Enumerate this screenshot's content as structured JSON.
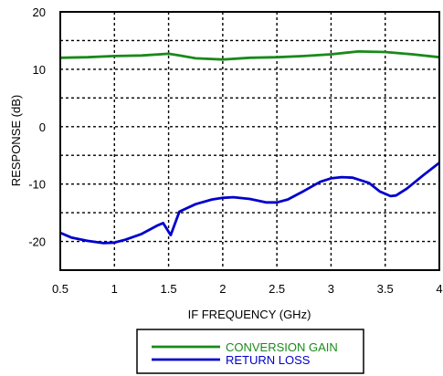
{
  "chart_data": {
    "type": "line",
    "xlabel": "IF FREQUENCY (GHz)",
    "ylabel": "RESPONSE (dB)",
    "xlim": [
      0.5,
      4
    ],
    "ylim": [
      -25,
      20
    ],
    "xticks": [
      0.5,
      1,
      1.5,
      2,
      2.5,
      3,
      3.5,
      4
    ],
    "xtick_labels": [
      "0.5",
      "1",
      "1.5",
      "2",
      "2.5",
      "3",
      "3.5",
      "4"
    ],
    "yticks": [
      20,
      10,
      0,
      -10,
      -20
    ],
    "ytick_labels": [
      "20",
      "10",
      "0",
      "-10",
      "-20"
    ],
    "x_grid_lines": [
      1,
      1.5,
      2,
      2.5,
      3,
      3.5
    ],
    "y_grid_lines": [
      15,
      10,
      5,
      0,
      -5,
      -10,
      -15,
      -20
    ],
    "grid": "dotted",
    "legend_position": "below",
    "series": [
      {
        "name": "CONVERSION GAIN",
        "color": "#1a8a1a",
        "points": [
          [
            0.5,
            12.0
          ],
          [
            0.75,
            12.1
          ],
          [
            1.0,
            12.3
          ],
          [
            1.25,
            12.4
          ],
          [
            1.5,
            12.7
          ],
          [
            1.6,
            12.4
          ],
          [
            1.75,
            11.9
          ],
          [
            2.0,
            11.7
          ],
          [
            2.25,
            12.0
          ],
          [
            2.5,
            12.1
          ],
          [
            2.75,
            12.3
          ],
          [
            3.0,
            12.6
          ],
          [
            3.25,
            13.1
          ],
          [
            3.5,
            13.0
          ],
          [
            3.75,
            12.6
          ],
          [
            4.0,
            12.1
          ]
        ]
      },
      {
        "name": "RETURN LOSS",
        "color": "#0000cc",
        "points": [
          [
            0.5,
            -18.5
          ],
          [
            0.6,
            -19.3
          ],
          [
            0.75,
            -19.9
          ],
          [
            0.9,
            -20.3
          ],
          [
            1.0,
            -20.2
          ],
          [
            1.1,
            -19.7
          ],
          [
            1.25,
            -18.7
          ],
          [
            1.4,
            -17.2
          ],
          [
            1.45,
            -16.8
          ],
          [
            1.52,
            -18.9
          ],
          [
            1.6,
            -14.8
          ],
          [
            1.75,
            -13.5
          ],
          [
            1.9,
            -12.7
          ],
          [
            2.0,
            -12.4
          ],
          [
            2.1,
            -12.3
          ],
          [
            2.25,
            -12.6
          ],
          [
            2.4,
            -13.2
          ],
          [
            2.5,
            -13.2
          ],
          [
            2.6,
            -12.7
          ],
          [
            2.75,
            -11.2
          ],
          [
            2.9,
            -9.6
          ],
          [
            3.0,
            -9.0
          ],
          [
            3.1,
            -8.8
          ],
          [
            3.2,
            -8.9
          ],
          [
            3.35,
            -9.8
          ],
          [
            3.45,
            -11.3
          ],
          [
            3.55,
            -12.1
          ],
          [
            3.6,
            -12.0
          ],
          [
            3.7,
            -10.8
          ],
          [
            3.85,
            -8.5
          ],
          [
            4.0,
            -6.3
          ]
        ]
      }
    ]
  }
}
